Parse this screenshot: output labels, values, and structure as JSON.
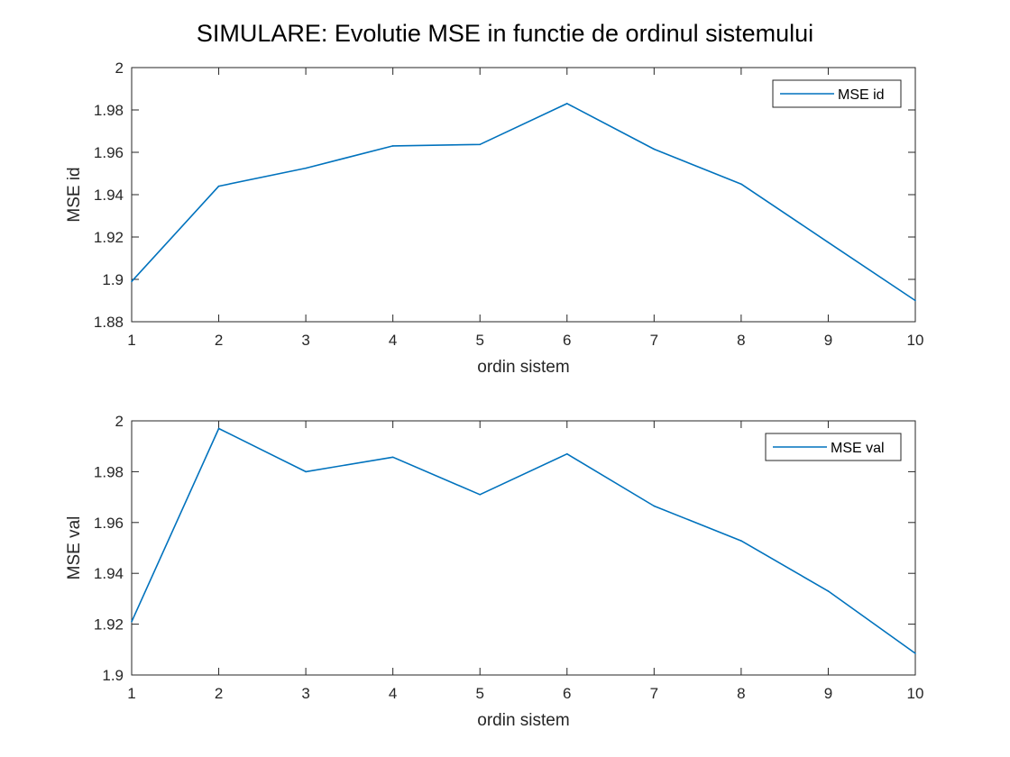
{
  "figure_title": "SIMULARE: Evolutie MSE in functie de ordinul sistemului",
  "colors": {
    "line": "#0072BD",
    "axis": "#262626",
    "background": "#ffffff",
    "legend_border": "#262626"
  },
  "chart_data": [
    {
      "type": "line",
      "xlabel": "ordin sistem",
      "ylabel": "MSE id",
      "xlim": [
        1,
        10
      ],
      "ylim": [
        1.88,
        2
      ],
      "x_ticks": [
        1,
        2,
        3,
        4,
        5,
        6,
        7,
        8,
        9,
        10
      ],
      "x_tick_labels": [
        "1",
        "2",
        "3",
        "4",
        "5",
        "6",
        "7",
        "8",
        "9",
        "10"
      ],
      "y_ticks": [
        1.88,
        1.9,
        1.92,
        1.94,
        1.96,
        1.98,
        2
      ],
      "y_tick_labels": [
        "1.88",
        "1.9",
        "1.92",
        "1.94",
        "1.96",
        "1.98",
        "2"
      ],
      "grid": false,
      "legend_position": "top-right",
      "series": [
        {
          "name": "MSE id",
          "x": [
            1,
            2,
            3,
            4,
            5,
            6,
            7,
            8,
            9,
            10
          ],
          "values": [
            1.899,
            1.944,
            1.9525,
            1.963,
            1.9637,
            1.983,
            1.9615,
            1.945,
            1.9175,
            1.89
          ]
        }
      ]
    },
    {
      "type": "line",
      "xlabel": "ordin sistem",
      "ylabel": "MSE val",
      "xlim": [
        1,
        10
      ],
      "ylim": [
        1.9,
        2
      ],
      "x_ticks": [
        1,
        2,
        3,
        4,
        5,
        6,
        7,
        8,
        9,
        10
      ],
      "x_tick_labels": [
        "1",
        "2",
        "3",
        "4",
        "5",
        "6",
        "7",
        "8",
        "9",
        "10"
      ],
      "y_ticks": [
        1.9,
        1.92,
        1.94,
        1.96,
        1.98,
        2
      ],
      "y_tick_labels": [
        "1.9",
        "1.92",
        "1.94",
        "1.96",
        "1.98",
        "2"
      ],
      "grid": false,
      "legend_position": "top-right",
      "series": [
        {
          "name": "MSE val",
          "x": [
            1,
            2,
            3,
            4,
            5,
            6,
            7,
            8,
            9,
            10
          ],
          "values": [
            1.921,
            1.997,
            1.98,
            1.9857,
            1.971,
            1.987,
            1.9665,
            1.9528,
            1.933,
            1.9085
          ]
        }
      ]
    }
  ]
}
